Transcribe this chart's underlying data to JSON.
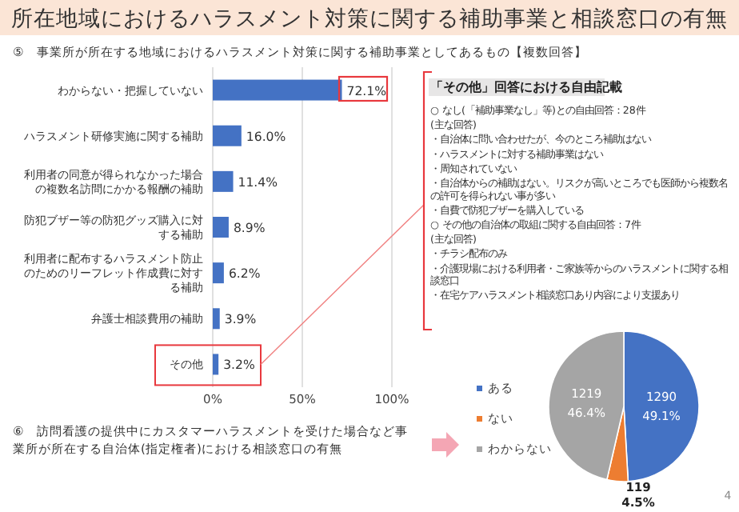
{
  "chart_data": [
    {
      "type": "bar",
      "orientation": "horizontal",
      "title": "所在地域におけるハラスメント対策に関する補助事業と相談窓口の有無",
      "subtitle": "⑤　事業所が所在する地域におけるハラスメント対策に関する補助事業としてあるもの【複数回答】",
      "categories": [
        "わからない・把握していない",
        "ハラスメント研修実施に関する補助",
        "利用者の同意が得られなかった場合の複数名訪問にかかる報酬の補助",
        "防犯ブザー等の防犯グッズ購入に対する補助",
        "利用者に配布するハラスメント防止のためのリーフレット作成費に対する補助",
        "弁護士相談費用の補助",
        "その他"
      ],
      "values": [
        72.1,
        16.0,
        11.4,
        8.9,
        6.2,
        3.9,
        3.2
      ],
      "value_labels": [
        "72.1%",
        "16.0%",
        "11.4%",
        "8.9%",
        "6.2%",
        "3.9%",
        "3.2%"
      ],
      "color": "#4472c4",
      "xlim": [
        0,
        100
      ],
      "xticks": [
        {
          "value": 0,
          "label": "0%"
        },
        {
          "value": 50,
          "label": "50%"
        },
        {
          "value": 100,
          "label": "100%"
        }
      ],
      "grid": "x",
      "annotations": [
        "「その他」回答における自由記載",
        "○ なし(「補助事業なし」等)との自由回答：28件",
        "(主な回答)",
        "・自治体に問い合わせたが、今のところ補助はない",
        "・ハラスメントに対する補助事業はない",
        "・周知されていない",
        "・自治体からの補助はない。リスクが高いところでも医師から複数名の許可を得られない事が多い",
        "・自費で防犯ブザーを購入している",
        "○ その他の自治体の取組に関する自由回答：7件",
        "(主な回答)",
        "・チラシ配布のみ",
        "・介護現場における利用者・ご家族等からのハラスメントに関する相談窓口",
        "・在宅ケアハラスメント相談窓口あり内容により支援あり"
      ]
    },
    {
      "type": "pie",
      "title": "⑥　訪問看護の提供中にカスタマーハラスメントを受けた場合など事業所が所在する自治体(指定権者)における相談窓口の有無",
      "categories": [
        "ある",
        "ない",
        "わからない"
      ],
      "values": [
        1290,
        119,
        1219
      ],
      "value_labels": [
        "1290\n49.1%",
        "119\n4.5%",
        "1219\n46.4%"
      ],
      "colors": [
        "#4472c4",
        "#ed7d31",
        "#a5a5a5"
      ],
      "legend": "left",
      "annotations": [
        "4"
      ]
    }
  ]
}
